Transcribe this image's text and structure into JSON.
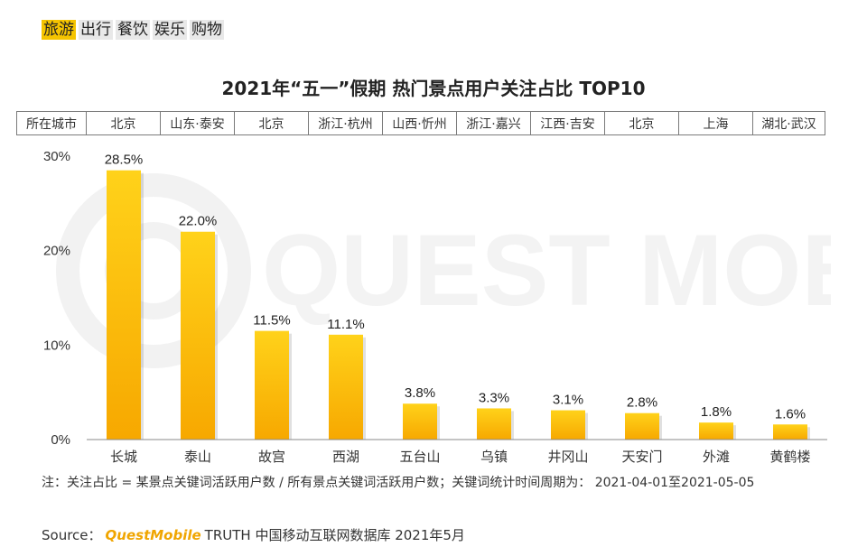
{
  "tabs": [
    {
      "label": "旅游",
      "active": true
    },
    {
      "label": "出行",
      "active": false
    },
    {
      "label": "餐饮",
      "active": false
    },
    {
      "label": "娱乐",
      "active": false
    },
    {
      "label": "购物",
      "active": false
    }
  ],
  "watermark_text": "QUEST MOBILE",
  "city_row": {
    "header": "所在城市",
    "cities": [
      "北京",
      "山东·泰安",
      "北京",
      "浙江·杭州",
      "山西·忻州",
      "浙江·嘉兴",
      "江西·吉安",
      "北京",
      "上海",
      "湖北·武汉"
    ]
  },
  "chart_data": {
    "type": "bar",
    "title": "2021年“五一”假期 热门景点用户关注占比 TOP10",
    "categories": [
      "长城",
      "泰山",
      "故宫",
      "西湖",
      "五台山",
      "乌镇",
      "井冈山",
      "天安门",
      "外滩",
      "黄鹤楼"
    ],
    "values": [
      28.5,
      22.0,
      11.5,
      11.1,
      3.8,
      3.3,
      3.1,
      2.8,
      1.8,
      1.6
    ],
    "value_labels": [
      "28.5%",
      "22.0%",
      "11.5%",
      "11.1%",
      "3.8%",
      "3.3%",
      "3.1%",
      "2.8%",
      "1.8%",
      "1.6%"
    ],
    "yticks": [
      0,
      10,
      20,
      30
    ],
    "ytick_labels": [
      "0%",
      "10%",
      "20%",
      "30%"
    ],
    "ylim": [
      0,
      30
    ],
    "xlabel": "",
    "ylabel": "",
    "grid": false,
    "bar_color_top": "#ffd21a",
    "bar_color_bottom": "#f7a800"
  },
  "note": "注：关注占比 = 某景点关键词活跃用户数 / 所有景点关键词活跃用户数；关键词统计时间周期为： 2021-04-01至2021-05-05",
  "source": {
    "prefix": "Source：",
    "brand": "QuestMobile",
    "rest": "TRUTH 中国移动互联网数据库 2021年5月"
  }
}
